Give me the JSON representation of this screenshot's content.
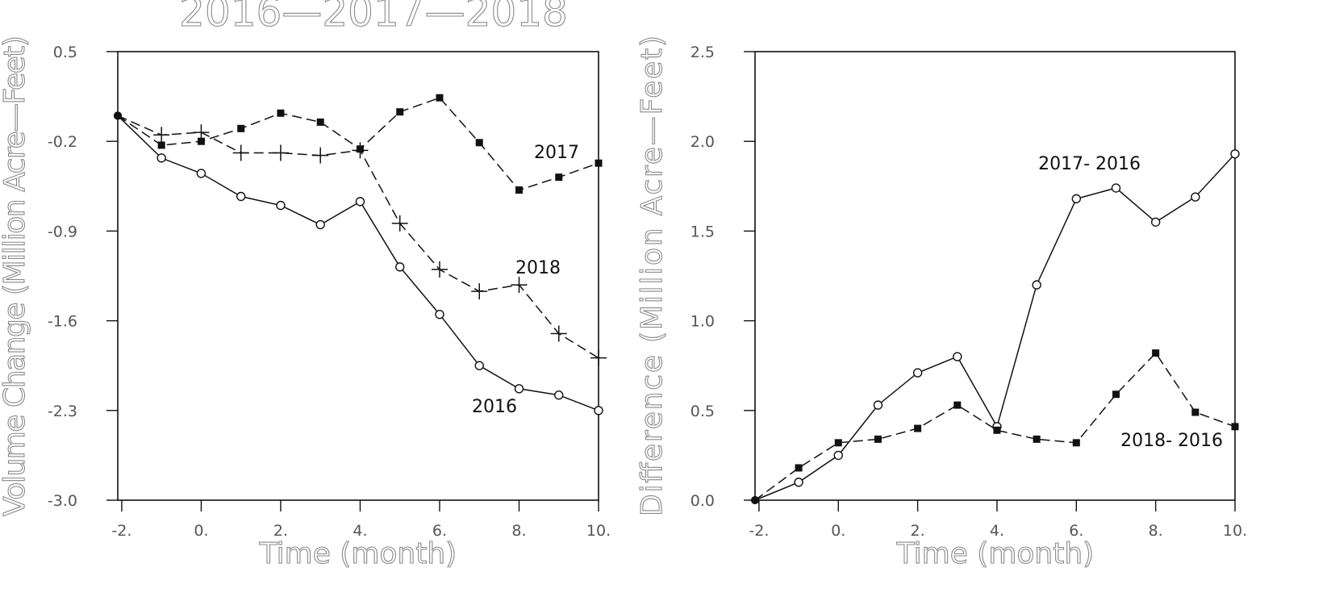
{
  "chart_data": [
    {
      "type": "line",
      "title": "2016—2017—2018",
      "xlabel": "Time (month)",
      "ylabel": "Volume Change (Million Acre—Feet)",
      "xlim": [
        -2.1,
        10
      ],
      "ylim": [
        -3.0,
        0.5
      ],
      "x_ticks": [
        -2,
        0,
        2,
        4,
        6,
        8,
        10
      ],
      "x_tick_labels": [
        "-2.",
        "0.",
        "2.",
        "4.",
        "6.",
        "8.",
        "10."
      ],
      "y_ticks": [
        0.5,
        -0.2,
        -0.9,
        -1.6,
        -2.3,
        -3.0
      ],
      "y_tick_labels": [
        "0.5",
        "-0.2",
        "-0.9",
        "-1.6",
        "-2.3",
        "-3.0"
      ],
      "grid": false,
      "x": [
        -2.1,
        -1,
        0,
        1,
        2,
        3,
        4,
        5,
        6,
        7,
        8,
        9,
        10
      ],
      "series": [
        {
          "name": "2016",
          "marker": "open-circle",
          "line": "solid",
          "values": [
            0.0,
            -0.33,
            -0.45,
            -0.63,
            -0.7,
            -0.85,
            -0.67,
            -1.18,
            -1.55,
            -1.95,
            -2.13,
            -2.18,
            -2.3
          ]
        },
        {
          "name": "2017",
          "marker": "filled-square",
          "line": "dashed",
          "values": [
            0.0,
            -0.23,
            -0.2,
            -0.1,
            0.02,
            -0.05,
            -0.26,
            0.03,
            0.14,
            -0.21,
            -0.58,
            -0.48,
            -0.37
          ]
        },
        {
          "name": "2018",
          "marker": "plus",
          "line": "dashed",
          "values": [
            0.0,
            -0.15,
            -0.13,
            -0.29,
            -0.29,
            -0.31,
            -0.27,
            -0.84,
            -1.2,
            -1.37,
            -1.32,
            -1.7,
            -1.89
          ]
        }
      ]
    },
    {
      "type": "line",
      "title": "",
      "xlabel": "Time (month)",
      "ylabel": "Difference (Million Acre—Feet)",
      "xlim": [
        -2.1,
        10
      ],
      "ylim": [
        0.0,
        2.5
      ],
      "x_ticks": [
        -2,
        0,
        2,
        4,
        6,
        8,
        10
      ],
      "x_tick_labels": [
        "-2.",
        "0.",
        "2.",
        "4.",
        "6.",
        "8.",
        "10."
      ],
      "y_ticks": [
        2.5,
        2.0,
        1.5,
        1.0,
        0.5,
        0.0
      ],
      "y_tick_labels": [
        "2.5",
        "2.0",
        "1.5",
        "1.0",
        "0.5",
        "0.0"
      ],
      "grid": false,
      "x": [
        -2.1,
        -1,
        0,
        1,
        2,
        3,
        4,
        5,
        6,
        7,
        8,
        9,
        10
      ],
      "series": [
        {
          "name": "2017- 2016",
          "marker": "open-circle",
          "line": "solid",
          "values": [
            0.0,
            0.1,
            0.25,
            0.53,
            0.71,
            0.8,
            0.41,
            1.2,
            1.68,
            1.74,
            1.55,
            1.69,
            1.93
          ]
        },
        {
          "name": "2018- 2016",
          "marker": "filled-square",
          "line": "dashed",
          "values": [
            0.0,
            0.18,
            0.32,
            0.34,
            0.4,
            0.53,
            0.39,
            0.34,
            0.32,
            0.59,
            0.82,
            0.49,
            0.41
          ]
        }
      ]
    }
  ],
  "colors": {
    "line": "#111111",
    "axis_label": "#8a8a8a",
    "tick_label": "#555555"
  }
}
